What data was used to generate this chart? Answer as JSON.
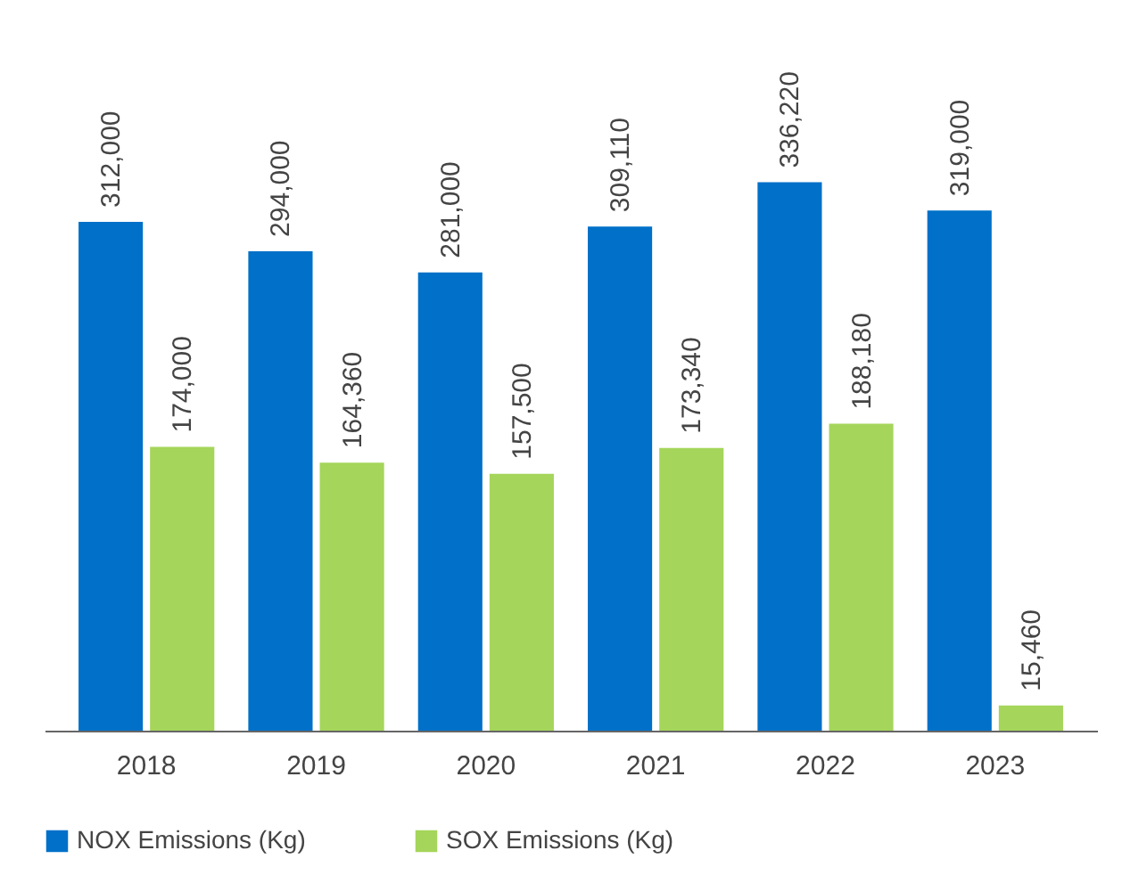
{
  "chart_data": {
    "type": "bar",
    "categories": [
      "2018",
      "2019",
      "2020",
      "2021",
      "2022",
      "2023"
    ],
    "series": [
      {
        "name": "NOX Emissions (Kg)",
        "color": "#0070c8",
        "values": [
          312000,
          294000,
          281000,
          309110,
          336220,
          319000
        ],
        "value_labels": [
          "312,000",
          "294,000",
          "281,000",
          "309,110",
          "336,220",
          "319,000"
        ]
      },
      {
        "name": "SOX Emissions (Kg)",
        "color": "#a5d55a",
        "values": [
          174000,
          164360,
          157500,
          173340,
          188180,
          15460
        ],
        "value_labels": [
          "174,000",
          "164,360",
          "157,500",
          "173,340",
          "188,180",
          "15,460"
        ]
      }
    ],
    "legend": "bottom",
    "grid": false
  }
}
